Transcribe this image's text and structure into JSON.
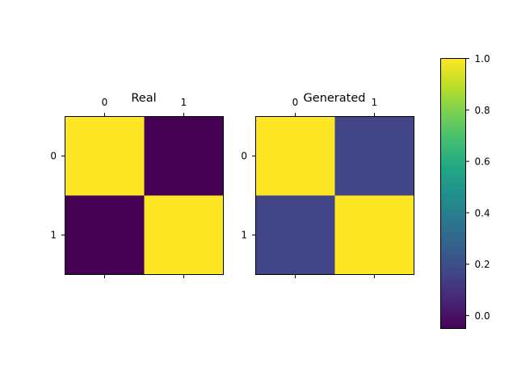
{
  "chart_data": {
    "type": "heatmap",
    "colormap": "viridis",
    "colorbar": {
      "range": [
        -0.05,
        1.0
      ],
      "ticks": [
        "1.0",
        "0.8",
        "0.6",
        "0.4",
        "0.2",
        "0.0"
      ],
      "tick_values": [
        1.0,
        0.8,
        0.6,
        0.4,
        0.2,
        0.0
      ]
    },
    "panels": [
      {
        "title": "Real",
        "x_ticks": [
          "0",
          "1"
        ],
        "y_ticks": [
          "0",
          "1"
        ],
        "values": [
          [
            1.0,
            -0.05
          ],
          [
            -0.05,
            1.0
          ]
        ]
      },
      {
        "title": "Generated",
        "x_ticks": [
          "0",
          "1"
        ],
        "y_ticks": [
          "0",
          "1"
        ],
        "values": [
          [
            1.0,
            0.16
          ],
          [
            0.16,
            1.0
          ]
        ]
      }
    ]
  }
}
